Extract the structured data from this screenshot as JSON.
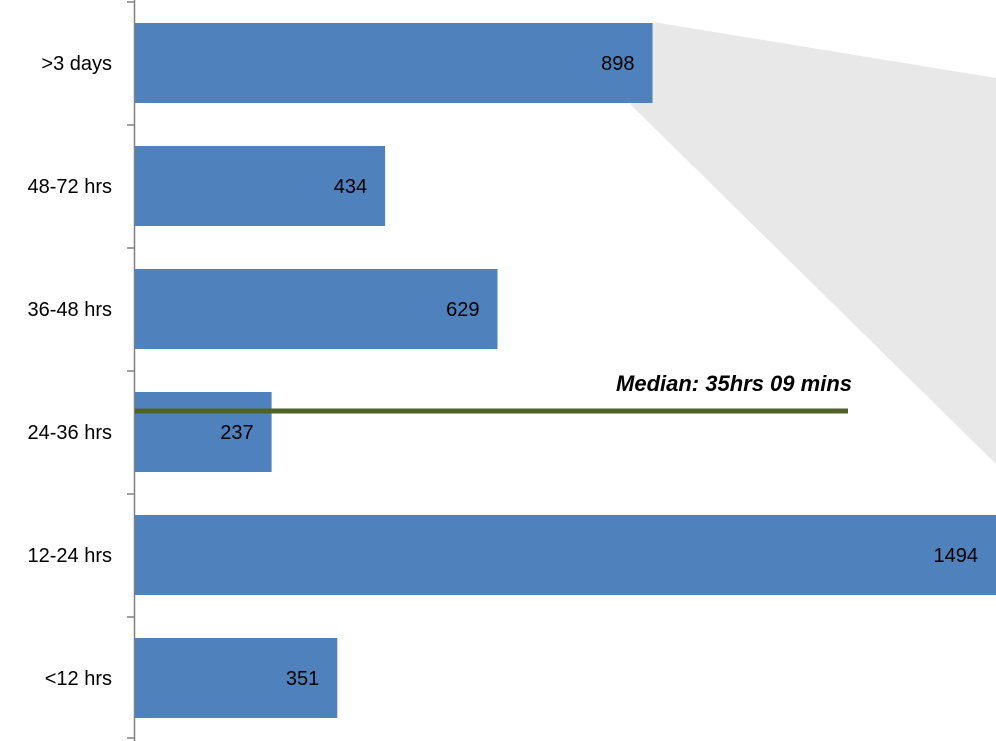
{
  "chart_data": {
    "type": "bar",
    "orientation": "horizontal",
    "categories": [
      ">3 days",
      "48-72 hrs",
      "36-48 hrs",
      "24-36 hrs",
      "12-24 hrs",
      "<12 hrs"
    ],
    "values": [
      898,
      434,
      629,
      237,
      1494,
      351
    ],
    "data_labels": [
      "898",
      "434",
      "629",
      "237",
      "1494",
      "351"
    ],
    "xlim": [
      0,
      1494
    ],
    "grid": false,
    "legend": "none",
    "annotations": [
      {
        "text": "Median: 35hrs 09 mins",
        "position": "between 36-48 hrs and 24-36 hrs",
        "style": "horizontal line"
      }
    ],
    "colors": {
      "bar": "#4f81bd",
      "median_line": "#4f6228",
      "callout_shade": "#e8e8e8",
      "axis": "#808080"
    }
  }
}
